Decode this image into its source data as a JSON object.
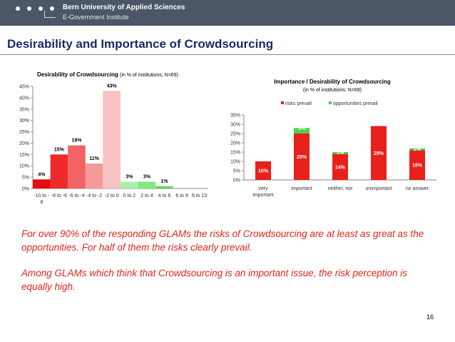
{
  "header": {
    "university": "Bern University of Applied Sciences",
    "institute": "E-Government Institute"
  },
  "slide": {
    "title": "Desirability and Importance of Crowdsourcing",
    "paragraph1": "For over 90% of the responding GLAMs the risks of Crowdsourcing are at least as great as the opportunities. For half of them the risks clearly prevail.",
    "paragraph2": "Among GLAMs which think that Crowdsourcing is an important issue, the risk perception is equally high.",
    "page_number": "16"
  },
  "colors": {
    "banner": "#4b5666",
    "title": "#1a2a66",
    "text_red": "#e0261c",
    "risks": "#e8201c",
    "opportunities": "#4ed24e"
  },
  "chart_data": [
    {
      "type": "bar",
      "title": "Desirability of Crowdsourcing",
      "subtitle": "(in % of institutions; N=69)",
      "categories": [
        "-10 to -8",
        "-8 to -6",
        "-6 to -4",
        "-4 to -2",
        "-2 to 0",
        "0 to 2",
        "2 to 4",
        "4 to 6",
        "6 to 8",
        "8 to 10"
      ],
      "values": [
        4,
        15,
        19,
        11,
        43,
        3,
        3,
        1,
        0,
        0
      ],
      "data_labels": [
        "4%",
        "15%",
        "19%",
        "11%",
        "43%",
        "3%",
        "3%",
        "1%",
        "",
        ""
      ],
      "bar_colors": [
        "#e50d0d",
        "#f02a2a",
        "#f26363",
        "#f59a9a",
        "#f8c2c2",
        "#aaf0aa",
        "#7fe87f",
        "#57de57",
        "#3fd23f",
        "#2fc22f"
      ],
      "yticks": [
        "0%",
        "5%",
        "10%",
        "15%",
        "20%",
        "25%",
        "30%",
        "35%",
        "40%",
        "45%"
      ],
      "ylim": [
        0,
        45
      ],
      "grid": false,
      "legend": "none"
    },
    {
      "type": "bar",
      "stacked": true,
      "title": "Importance / Desirability of Crowdsourcing",
      "subtitle": "(in % of institutions; N=69)",
      "categories": [
        "very important",
        "important",
        "neither, nor",
        "unimportant",
        "no answer"
      ],
      "series": [
        {
          "name": "risks prevail",
          "values": [
            10,
            25,
            14,
            29,
            16
          ],
          "labels": [
            "10%",
            "25%",
            "14%",
            "29%",
            "16%"
          ]
        },
        {
          "name": "opportunities prevail",
          "values": [
            0,
            3,
            1,
            0,
            1
          ],
          "labels": [
            "",
            "3%",
            "1%",
            "",
            "1%"
          ]
        }
      ],
      "yticks": [
        "0%",
        "5%",
        "10%",
        "15%",
        "20%",
        "25%",
        "30%",
        "35%"
      ],
      "ylim": [
        0,
        35
      ],
      "grid": false,
      "legend": "top"
    }
  ]
}
